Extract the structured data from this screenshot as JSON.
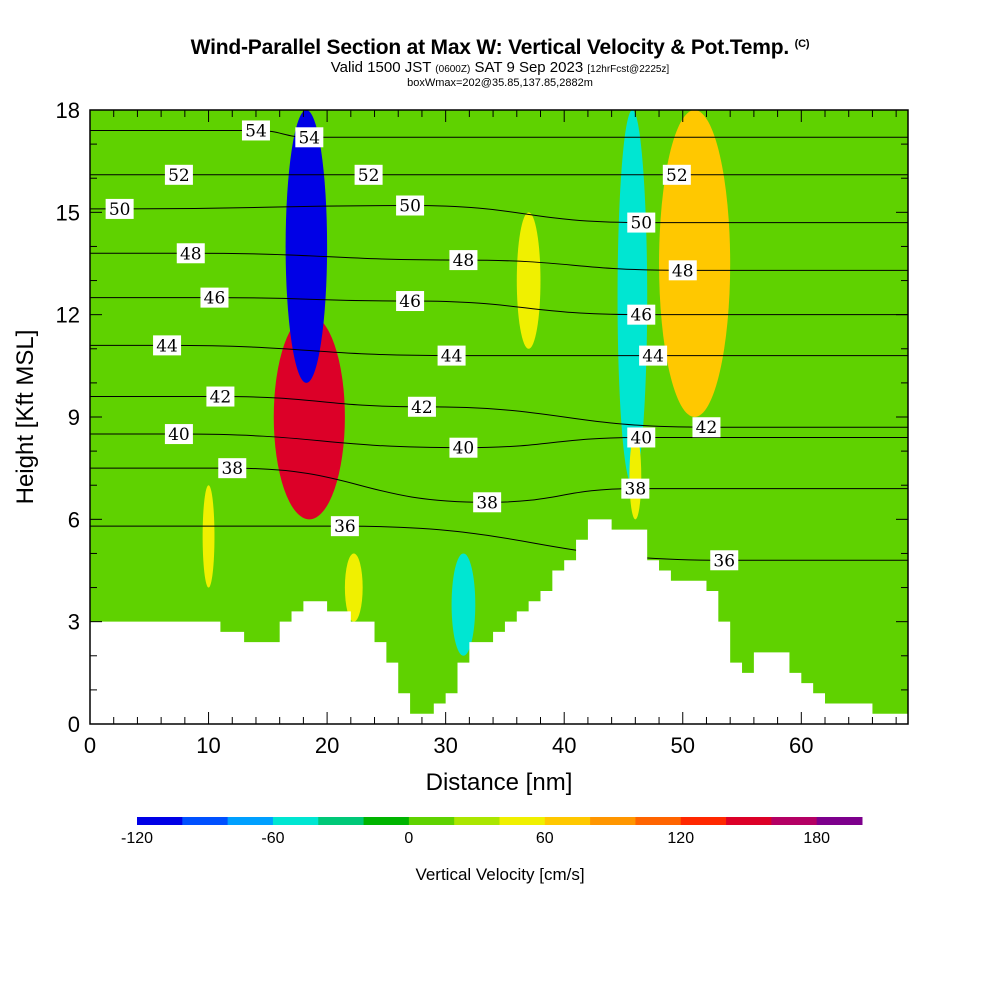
{
  "header": {
    "title_main": "Wind-Parallel Section at Max W: Vertical Velocity & Pot.Temp.",
    "title_mark": "(C)",
    "valid_prefix": "Valid 1500 JST",
    "valid_utc": "(0600Z)",
    "valid_date": "SAT 9 Sep 2023",
    "forecast": "[12hrFcst@2225z]",
    "box_info": "boxWmax=202@35.85,137.85,2882m"
  },
  "chart_data": {
    "type": "heatmap",
    "xlabel": "Distance [nm]",
    "ylabel": "Height [Kft MSL]",
    "xlim": [
      0,
      69
    ],
    "ylim": [
      0,
      18
    ],
    "x_ticks": [
      0,
      10,
      20,
      30,
      40,
      50,
      60
    ],
    "y_ticks": [
      0,
      3,
      6,
      9,
      12,
      15,
      18
    ],
    "terrain_kft": [
      [
        0,
        3.0
      ],
      [
        11,
        3.0
      ],
      [
        11,
        2.7
      ],
      [
        13,
        2.7
      ],
      [
        13,
        2.4
      ],
      [
        16,
        2.4
      ],
      [
        16,
        3.0
      ],
      [
        17,
        3.0
      ],
      [
        17,
        3.3
      ],
      [
        18,
        3.3
      ],
      [
        18,
        3.6
      ],
      [
        20,
        3.6
      ],
      [
        20,
        3.3
      ],
      [
        22,
        3.3
      ],
      [
        22,
        3.0
      ],
      [
        24,
        3.0
      ],
      [
        24,
        2.4
      ],
      [
        25,
        2.4
      ],
      [
        25,
        1.8
      ],
      [
        26,
        1.8
      ],
      [
        26,
        0.9
      ],
      [
        27,
        0.9
      ],
      [
        27,
        0.3
      ],
      [
        29,
        0.3
      ],
      [
        29,
        0.6
      ],
      [
        30,
        0.6
      ],
      [
        30,
        0.9
      ],
      [
        31,
        0.9
      ],
      [
        31,
        1.8
      ],
      [
        32,
        1.8
      ],
      [
        32,
        2.4
      ],
      [
        34,
        2.4
      ],
      [
        34,
        2.7
      ],
      [
        35,
        2.7
      ],
      [
        35,
        3.0
      ],
      [
        36,
        3.0
      ],
      [
        36,
        3.3
      ],
      [
        37,
        3.3
      ],
      [
        37,
        3.6
      ],
      [
        38,
        3.6
      ],
      [
        38,
        3.9
      ],
      [
        39,
        3.9
      ],
      [
        39,
        4.5
      ],
      [
        40,
        4.5
      ],
      [
        40,
        4.8
      ],
      [
        41,
        4.8
      ],
      [
        41,
        5.4
      ],
      [
        42,
        5.4
      ],
      [
        42,
        6.0
      ],
      [
        44,
        6.0
      ],
      [
        44,
        5.7
      ],
      [
        47,
        5.7
      ],
      [
        47,
        4.8
      ],
      [
        48,
        4.8
      ],
      [
        48,
        4.5
      ],
      [
        49,
        4.5
      ],
      [
        49,
        4.2
      ],
      [
        52,
        4.2
      ],
      [
        52,
        3.9
      ],
      [
        53,
        3.9
      ],
      [
        53,
        3.0
      ],
      [
        54,
        3.0
      ],
      [
        54,
        1.8
      ],
      [
        55,
        1.8
      ],
      [
        55,
        1.5
      ],
      [
        56,
        1.5
      ],
      [
        56,
        2.1
      ],
      [
        59,
        2.1
      ],
      [
        59,
        1.5
      ],
      [
        60,
        1.5
      ],
      [
        60,
        1.2
      ],
      [
        61,
        1.2
      ],
      [
        61,
        0.9
      ],
      [
        62,
        0.9
      ],
      [
        62,
        0.6
      ],
      [
        66,
        0.6
      ],
      [
        66,
        0.3
      ],
      [
        69,
        0.3
      ]
    ],
    "vertical_velocity_cells": [
      {
        "x": [
          0,
          69
        ],
        "y": [
          0,
          18
        ],
        "w": 0
      },
      {
        "x": [
          15.5,
          21.5
        ],
        "y": [
          6,
          12
        ],
        "w": 150
      },
      {
        "x": [
          16.5,
          20
        ],
        "y": [
          10,
          18
        ],
        "w": -110
      },
      {
        "x": [
          44.5,
          47
        ],
        "y": [
          7,
          18
        ],
        "w": -45
      },
      {
        "x": [
          48,
          54
        ],
        "y": [
          9,
          18
        ],
        "w": 60
      },
      {
        "x": [
          30.5,
          32.5
        ],
        "y": [
          2,
          5
        ],
        "w": -45
      },
      {
        "x": [
          21.5,
          23
        ],
        "y": [
          3,
          5
        ],
        "w": 50
      },
      {
        "x": [
          9.5,
          10.5
        ],
        "y": [
          4,
          7
        ],
        "w": 50
      },
      {
        "x": [
          45.5,
          46.5
        ],
        "y": [
          6,
          8.5
        ],
        "w": 50
      },
      {
        "x": [
          36,
          38
        ],
        "y": [
          11,
          15
        ],
        "w": 40
      }
    ],
    "theta_contours": [
      {
        "label": "36",
        "theta": 36,
        "labels_at": [
          [
            21.5,
            5.8
          ],
          [
            53.5,
            4.8
          ]
        ]
      },
      {
        "label": "38",
        "theta": 38,
        "labels_at": [
          [
            12,
            7.5
          ],
          [
            33.5,
            6.5
          ],
          [
            46,
            6.9
          ]
        ]
      },
      {
        "label": "40",
        "theta": 40,
        "labels_at": [
          [
            7.5,
            8.5
          ],
          [
            31.5,
            8.1
          ],
          [
            46.5,
            8.4
          ]
        ]
      },
      {
        "label": "42",
        "theta": 42,
        "labels_at": [
          [
            11,
            9.6
          ],
          [
            28,
            9.3
          ],
          [
            52,
            8.7
          ]
        ]
      },
      {
        "label": "44",
        "theta": 44,
        "labels_at": [
          [
            6.5,
            11.1
          ],
          [
            30.5,
            10.8
          ],
          [
            47.5,
            10.8
          ]
        ]
      },
      {
        "label": "46",
        "theta": 46,
        "labels_at": [
          [
            10.5,
            12.5
          ],
          [
            27,
            12.4
          ],
          [
            46.5,
            12.0
          ]
        ]
      },
      {
        "label": "48",
        "theta": 48,
        "labels_at": [
          [
            8.5,
            13.8
          ],
          [
            31.5,
            13.6
          ],
          [
            50,
            13.3
          ]
        ]
      },
      {
        "label": "50",
        "theta": 50,
        "labels_at": [
          [
            2.5,
            15.1
          ],
          [
            27,
            15.2
          ],
          [
            46.5,
            14.7
          ]
        ]
      },
      {
        "label": "52",
        "theta": 52,
        "labels_at": [
          [
            7.5,
            16.1
          ],
          [
            23.5,
            16.1
          ],
          [
            49.5,
            16.1
          ]
        ]
      },
      {
        "label": "54",
        "theta": 54,
        "labels_at": [
          [
            14,
            17.4
          ],
          [
            18.5,
            17.2
          ]
        ]
      }
    ],
    "colorbar": {
      "label": "Vertical Velocity [cm/s]",
      "min": -120,
      "max": 200,
      "step": 20,
      "tick_values": [
        -120,
        -60,
        0,
        60,
        120,
        180
      ],
      "tick_labels": [
        "-120",
        "-60",
        "0",
        "60",
        "120",
        "180"
      ],
      "colors": [
        "#0000e6",
        "#0050ff",
        "#00a0ff",
        "#00e6d2",
        "#00c878",
        "#00b400",
        "#5fd200",
        "#aae600",
        "#f0f000",
        "#ffc800",
        "#ff9600",
        "#ff6400",
        "#ff2800",
        "#dc0028",
        "#b40064",
        "#7d008c"
      ]
    }
  }
}
